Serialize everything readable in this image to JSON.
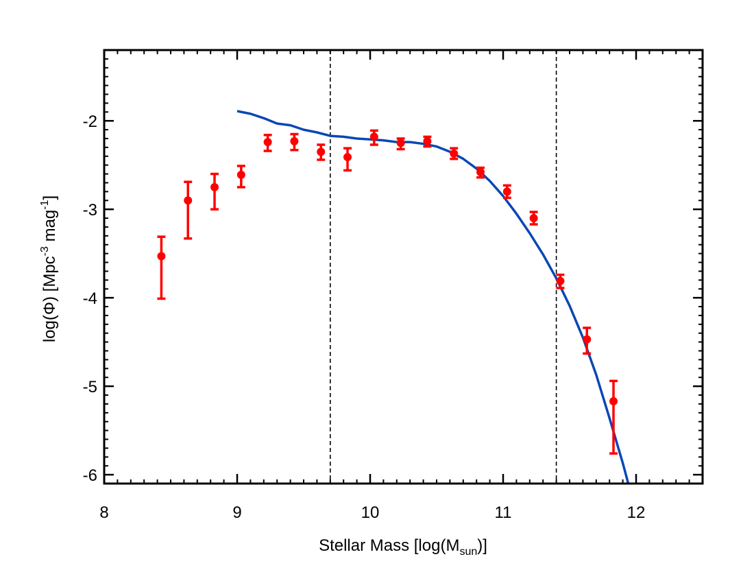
{
  "chart_data": {
    "type": "scatter",
    "title": "",
    "xlabel": {
      "main": "Stellar Mass [log(M",
      "sub": "sun",
      "end": ")]"
    },
    "ylabel": {
      "p1": "log(Φ) [Mpc",
      "sup1": "-3",
      "p2": " mag",
      "sup2": "-1",
      "p3": "]"
    },
    "xlim": [
      8.0,
      12.5
    ],
    "ylim": [
      -6.1,
      -1.2
    ],
    "x_ticks": [
      8,
      9,
      10,
      11,
      12
    ],
    "x_tick_labels": [
      "8",
      "9",
      "10",
      "11",
      "12"
    ],
    "y_ticks": [
      -2,
      -3,
      -4,
      -5,
      -6
    ],
    "y_tick_labels": [
      "-2",
      "-3",
      "-4",
      "-5",
      "-6"
    ],
    "x_minor_step": 0.1,
    "y_minor_step": 0.1,
    "grid": false,
    "vlines": [
      {
        "x": 9.7,
        "style": "dashed",
        "color": "#000000"
      },
      {
        "x": 11.4,
        "style": "dashed",
        "color": "#000000"
      }
    ],
    "series": [
      {
        "kind": "points-with-errorbars",
        "color": "#ff0000",
        "points": [
          {
            "x": 8.43,
            "y": -3.53,
            "ylo": -4.01,
            "yhi": -3.31
          },
          {
            "x": 8.63,
            "y": -2.9,
            "ylo": -3.33,
            "yhi": -2.69
          },
          {
            "x": 8.83,
            "y": -2.75,
            "ylo": -3.0,
            "yhi": -2.6
          },
          {
            "x": 9.03,
            "y": -2.61,
            "ylo": -2.75,
            "yhi": -2.51
          },
          {
            "x": 9.23,
            "y": -2.24,
            "ylo": -2.34,
            "yhi": -2.16
          },
          {
            "x": 9.43,
            "y": -2.23,
            "ylo": -2.33,
            "yhi": -2.15
          },
          {
            "x": 9.63,
            "y": -2.35,
            "ylo": -2.44,
            "yhi": -2.27
          },
          {
            "x": 9.83,
            "y": -2.41,
            "ylo": -2.56,
            "yhi": -2.31
          },
          {
            "x": 10.03,
            "y": -2.18,
            "ylo": -2.27,
            "yhi": -2.11
          },
          {
            "x": 10.23,
            "y": -2.25,
            "ylo": -2.32,
            "yhi": -2.2
          },
          {
            "x": 10.43,
            "y": -2.23,
            "ylo": -2.29,
            "yhi": -2.18
          },
          {
            "x": 10.63,
            "y": -2.37,
            "ylo": -2.43,
            "yhi": -2.31
          },
          {
            "x": 10.83,
            "y": -2.58,
            "ylo": -2.64,
            "yhi": -2.53
          },
          {
            "x": 11.03,
            "y": -2.8,
            "ylo": -2.87,
            "yhi": -2.73
          },
          {
            "x": 11.23,
            "y": -3.1,
            "ylo": -3.17,
            "yhi": -3.03
          },
          {
            "x": 11.43,
            "y": -3.81,
            "ylo": -3.89,
            "yhi": -3.74
          },
          {
            "x": 11.63,
            "y": -4.47,
            "ylo": -4.63,
            "yhi": -4.34
          },
          {
            "x": 11.83,
            "y": -5.17,
            "ylo": -5.76,
            "yhi": -4.94
          }
        ]
      },
      {
        "kind": "line",
        "color": "#0a47b4",
        "x": [
          9.0,
          9.1,
          9.2,
          9.3,
          9.4,
          9.5,
          9.6,
          9.7,
          9.8,
          9.9,
          10.0,
          10.1,
          10.2,
          10.3,
          10.4,
          10.5,
          10.6,
          10.7,
          10.8,
          10.9,
          11.0,
          11.1,
          11.2,
          11.3,
          11.4,
          11.5,
          11.6,
          11.7,
          11.8,
          11.9,
          11.95
        ],
        "y": [
          -1.89,
          -1.92,
          -1.97,
          -2.03,
          -2.05,
          -2.1,
          -2.13,
          -2.17,
          -2.18,
          -2.2,
          -2.21,
          -2.22,
          -2.24,
          -2.24,
          -2.26,
          -2.29,
          -2.35,
          -2.43,
          -2.54,
          -2.68,
          -2.85,
          -3.05,
          -3.27,
          -3.51,
          -3.78,
          -4.09,
          -4.45,
          -4.87,
          -5.36,
          -5.87,
          -6.15
        ]
      }
    ]
  },
  "colors": {
    "points": "#ff0000",
    "model_line": "#0a47b4",
    "axes": "#000000"
  }
}
